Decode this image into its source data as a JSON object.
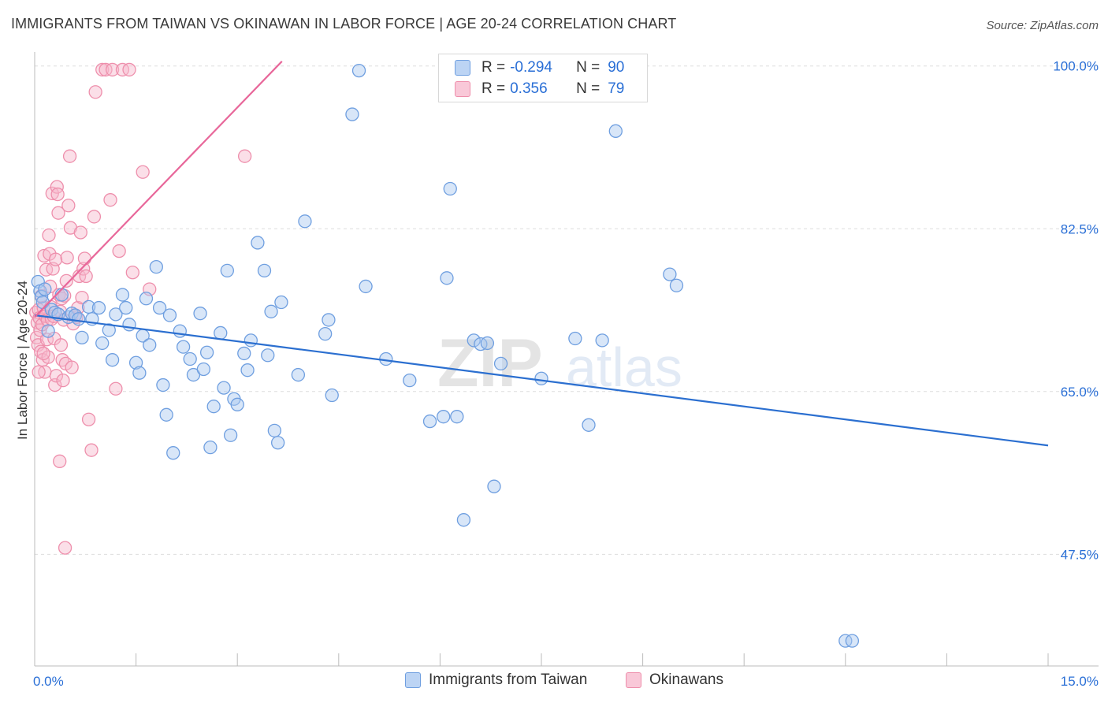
{
  "title": "IMMIGRANTS FROM TAIWAN VS OKINAWAN IN LABOR FORCE | AGE 20-24 CORRELATION CHART",
  "source": "Source: ZipAtlas.com",
  "watermark": {
    "zip": "ZIP",
    "atlas": "atlas"
  },
  "colors": {
    "blue_fill": "#a9c8f0",
    "blue_stroke": "#6f9fe0",
    "blue_line": "#2b6fd0",
    "pink_fill": "#f6b9cb",
    "pink_stroke": "#ee8fac",
    "pink_line": "#e8679a",
    "tick_label": "#2a6fd6",
    "grid": "#dddddd"
  },
  "legend_top": [
    {
      "r_label": "R =",
      "r_value": "-0.294",
      "n_label": "N =",
      "n_value": "90"
    },
    {
      "r_label": "R =",
      "r_value": "0.356",
      "n_label": "N =",
      "n_value": "79"
    }
  ],
  "legend_bottom": [
    "Immigrants from Taiwan",
    "Okinawans"
  ],
  "chart_data": {
    "type": "scatter",
    "title": "IMMIGRANTS FROM TAIWAN VS OKINAWAN IN LABOR FORCE | AGE 20-24 CORRELATION CHART",
    "xlabel": "",
    "ylabel": "In Labor Force | Age 20-24",
    "xlim": [
      0,
      15
    ],
    "ylim": [
      35.5,
      101.5
    ],
    "x_tick_labels": [
      "0.0%",
      "15.0%"
    ],
    "x_tick_label_values": [
      0,
      15
    ],
    "x_minor_ticks": [
      0,
      1.5,
      3,
      4.5,
      6,
      7.5,
      9,
      10.5,
      12,
      13.5,
      15
    ],
    "y_ticks": [
      47.5,
      65.0,
      82.5,
      100.0
    ],
    "y_tick_labels": [
      "47.5%",
      "65.0%",
      "82.5%",
      "100.0%"
    ],
    "grid": true,
    "legend_position": "top-center",
    "series": [
      {
        "name": "Immigrants from Taiwan",
        "r": -0.294,
        "n": 90,
        "trend": {
          "x": [
            0.0,
            15.0
          ],
          "y": [
            73.2,
            59.2
          ]
        },
        "points": [
          [
            0.05,
            76.8
          ],
          [
            0.08,
            75.8
          ],
          [
            0.1,
            75.2
          ],
          [
            0.12,
            74.6
          ],
          [
            0.15,
            76.0
          ],
          [
            0.2,
            71.5
          ],
          [
            0.25,
            73.8
          ],
          [
            0.3,
            73.5
          ],
          [
            0.35,
            73.3
          ],
          [
            0.4,
            75.4
          ],
          [
            0.5,
            73.0
          ],
          [
            0.55,
            73.4
          ],
          [
            0.6,
            73.2
          ],
          [
            0.65,
            72.8
          ],
          [
            0.7,
            70.8
          ],
          [
            0.8,
            74.1
          ],
          [
            0.85,
            72.8
          ],
          [
            0.95,
            74.0
          ],
          [
            1.0,
            70.2
          ],
          [
            1.1,
            71.6
          ],
          [
            1.15,
            68.4
          ],
          [
            1.2,
            73.3
          ],
          [
            1.3,
            75.4
          ],
          [
            1.35,
            74.0
          ],
          [
            1.4,
            72.2
          ],
          [
            1.5,
            68.1
          ],
          [
            1.55,
            67.0
          ],
          [
            1.6,
            71.0
          ],
          [
            1.7,
            70.0
          ],
          [
            1.65,
            75.0
          ],
          [
            1.8,
            78.4
          ],
          [
            1.85,
            74.0
          ],
          [
            1.9,
            65.7
          ],
          [
            1.95,
            62.5
          ],
          [
            2.0,
            73.2
          ],
          [
            2.05,
            58.4
          ],
          [
            2.15,
            71.5
          ],
          [
            2.2,
            69.8
          ],
          [
            2.3,
            68.5
          ],
          [
            2.35,
            66.8
          ],
          [
            2.45,
            73.4
          ],
          [
            2.5,
            67.4
          ],
          [
            2.55,
            69.2
          ],
          [
            2.6,
            59.0
          ],
          [
            2.65,
            63.4
          ],
          [
            2.75,
            71.3
          ],
          [
            2.8,
            65.4
          ],
          [
            2.85,
            78.0
          ],
          [
            2.9,
            60.3
          ],
          [
            2.95,
            64.2
          ],
          [
            3.0,
            63.6
          ],
          [
            3.1,
            69.1
          ],
          [
            3.15,
            67.3
          ],
          [
            3.2,
            70.5
          ],
          [
            3.3,
            81.0
          ],
          [
            3.4,
            78.0
          ],
          [
            3.45,
            68.9
          ],
          [
            3.5,
            73.6
          ],
          [
            3.55,
            60.8
          ],
          [
            3.6,
            59.5
          ],
          [
            3.65,
            74.6
          ],
          [
            3.9,
            66.8
          ],
          [
            4.0,
            83.3
          ],
          [
            4.3,
            71.2
          ],
          [
            4.35,
            72.7
          ],
          [
            4.4,
            64.6
          ],
          [
            4.7,
            94.8
          ],
          [
            4.8,
            99.5
          ],
          [
            4.9,
            76.3
          ],
          [
            5.2,
            68.5
          ],
          [
            5.55,
            66.2
          ],
          [
            5.85,
            61.8
          ],
          [
            6.05,
            62.3
          ],
          [
            6.1,
            77.2
          ],
          [
            6.15,
            86.8
          ],
          [
            6.25,
            62.3
          ],
          [
            6.35,
            51.2
          ],
          [
            6.5,
            70.5
          ],
          [
            6.6,
            70.1
          ],
          [
            6.7,
            70.2
          ],
          [
            6.8,
            54.8
          ],
          [
            6.9,
            68.0
          ],
          [
            7.5,
            66.4
          ],
          [
            8.0,
            70.7
          ],
          [
            8.2,
            61.4
          ],
          [
            8.4,
            70.5
          ],
          [
            8.6,
            93.0
          ],
          [
            9.4,
            77.6
          ],
          [
            9.5,
            76.4
          ],
          [
            12.0,
            38.2
          ],
          [
            12.1,
            38.2
          ]
        ]
      },
      {
        "name": "Okinawans",
        "r": 0.356,
        "n": 79,
        "trend": {
          "x": [
            0.0,
            3.66
          ],
          "y": [
            73.0,
            100.5
          ]
        },
        "points": [
          [
            0.02,
            73.5
          ],
          [
            0.03,
            70.8
          ],
          [
            0.04,
            72.4
          ],
          [
            0.05,
            70.0
          ],
          [
            0.06,
            73.8
          ],
          [
            0.07,
            72.9
          ],
          [
            0.08,
            71.6
          ],
          [
            0.09,
            69.3
          ],
          [
            0.1,
            75.3
          ],
          [
            0.11,
            72.2
          ],
          [
            0.12,
            68.4
          ],
          [
            0.13,
            74.0
          ],
          [
            0.14,
            79.6
          ],
          [
            0.15,
            67.1
          ],
          [
            0.16,
            73.1
          ],
          [
            0.17,
            78.1
          ],
          [
            0.18,
            70.6
          ],
          [
            0.19,
            72.7
          ],
          [
            0.2,
            68.7
          ],
          [
            0.21,
            81.8
          ],
          [
            0.22,
            79.8
          ],
          [
            0.23,
            76.3
          ],
          [
            0.24,
            74.1
          ],
          [
            0.25,
            72.8
          ],
          [
            0.26,
            86.3
          ],
          [
            0.27,
            78.2
          ],
          [
            0.28,
            73.1
          ],
          [
            0.29,
            70.7
          ],
          [
            0.3,
            65.7
          ],
          [
            0.31,
            79.2
          ],
          [
            0.32,
            66.7
          ],
          [
            0.33,
            87.0
          ],
          [
            0.34,
            86.2
          ],
          [
            0.35,
            84.2
          ],
          [
            0.36,
            75.4
          ],
          [
            0.37,
            57.5
          ],
          [
            0.38,
            73.6
          ],
          [
            0.39,
            70.0
          ],
          [
            0.4,
            75.0
          ],
          [
            0.41,
            68.4
          ],
          [
            0.42,
            66.2
          ],
          [
            0.43,
            72.7
          ],
          [
            0.44,
            75.3
          ],
          [
            0.45,
            48.2
          ],
          [
            0.46,
            68.0
          ],
          [
            0.47,
            76.9
          ],
          [
            0.48,
            79.4
          ],
          [
            0.5,
            85.0
          ],
          [
            0.52,
            90.3
          ],
          [
            0.53,
            82.6
          ],
          [
            0.55,
            67.6
          ],
          [
            0.57,
            72.3
          ],
          [
            0.6,
            73.2
          ],
          [
            0.62,
            73.0
          ],
          [
            0.64,
            74.0
          ],
          [
            0.66,
            77.4
          ],
          [
            0.68,
            82.1
          ],
          [
            0.7,
            75.1
          ],
          [
            0.72,
            78.2
          ],
          [
            0.74,
            79.3
          ],
          [
            0.76,
            77.4
          ],
          [
            0.8,
            62.0
          ],
          [
            0.84,
            58.7
          ],
          [
            0.88,
            83.8
          ],
          [
            0.9,
            97.2
          ],
          [
            1.0,
            99.6
          ],
          [
            1.05,
            99.6
          ],
          [
            1.12,
            85.6
          ],
          [
            1.15,
            99.6
          ],
          [
            1.2,
            65.3
          ],
          [
            1.25,
            80.1
          ],
          [
            1.3,
            99.6
          ],
          [
            1.4,
            99.6
          ],
          [
            1.45,
            77.8
          ],
          [
            1.6,
            88.6
          ],
          [
            1.7,
            76.0
          ],
          [
            3.11,
            90.3
          ],
          [
            0.06,
            67.1
          ],
          [
            0.13,
            69.1
          ]
        ]
      }
    ]
  }
}
